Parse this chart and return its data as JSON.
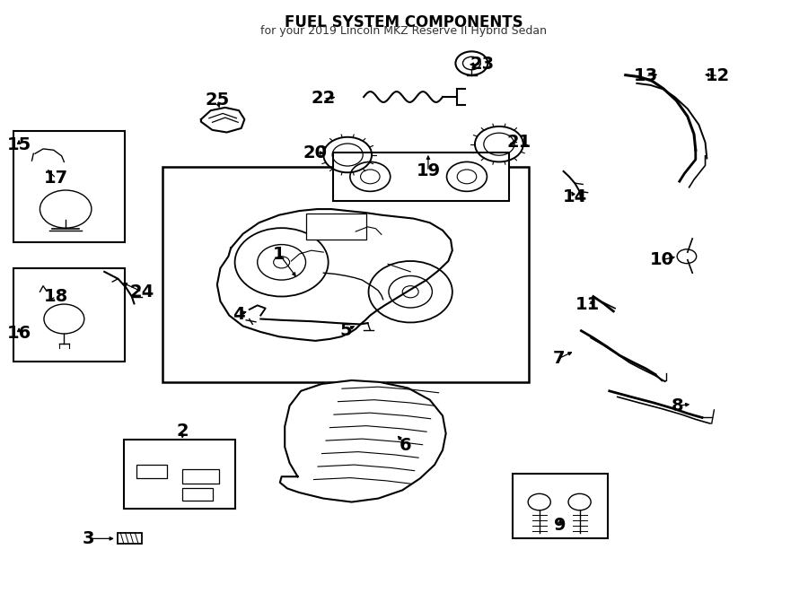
{
  "title": "FUEL SYSTEM COMPONENTS",
  "subtitle": "for your 2019 Lincoln MKZ Reserve II Hybrid Sedan",
  "bg_color": "#ffffff",
  "line_color": "#000000",
  "fontsize_label": 14,
  "fontsize_title": 11
}
